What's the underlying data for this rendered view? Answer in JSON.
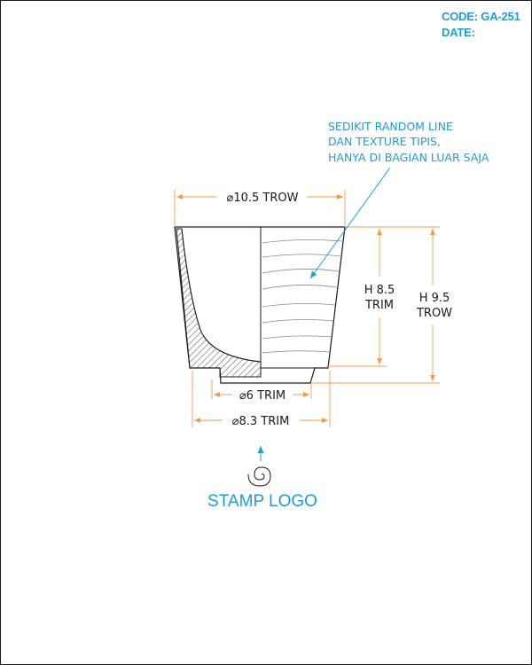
{
  "header": {
    "code": "CODE: GA-251",
    "date": "DATE:"
  },
  "dimensions": {
    "top_diameter": "⌀10.5 TROW",
    "height_trim": [
      "H 8.5",
      "TRIM"
    ],
    "height_trow": [
      "H 9.5",
      "TROW"
    ],
    "foot_diameter": "⌀6 TRIM",
    "base_diameter": "⌀8.3 TRIM"
  },
  "note": {
    "lines": [
      "SEDIKIT RANDOM LINE",
      "DAN TEXTURE TIPIS,",
      "HANYA DI BAGIAN LUAR SAJA"
    ]
  },
  "stamp": {
    "label": "STAMP LOGO"
  },
  "colors": {
    "accent_blue": "#1f9bd7",
    "dimension_orange": "#f39a4b",
    "line": "#1a1a1a"
  }
}
